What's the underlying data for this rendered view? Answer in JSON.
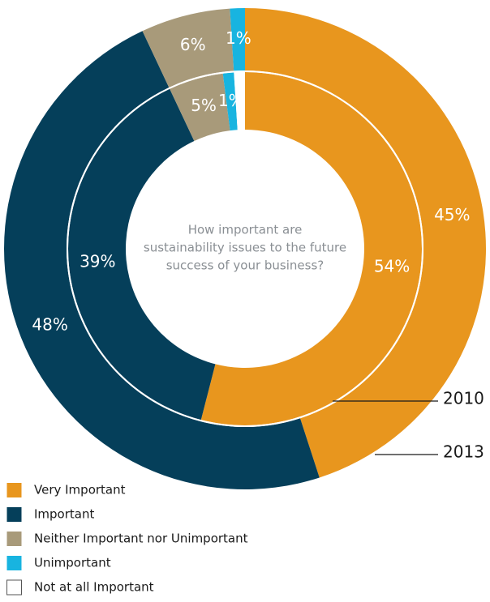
{
  "chart_data": {
    "type": "donut",
    "center_text": [
      "How important are",
      "sustainability issues to the future",
      "success of your business?"
    ],
    "categories": [
      "2010",
      "2013"
    ],
    "series": [
      {
        "name": "Very Important",
        "color": "#e8961e",
        "values": [
          54,
          45
        ],
        "value_labels": [
          "54%",
          "45%"
        ]
      },
      {
        "name": "Important",
        "color": "#053f5a",
        "values": [
          39,
          48
        ],
        "value_labels": [
          "39%",
          "48%"
        ]
      },
      {
        "name": "Neither Important nor Unimportant",
        "color": "#a89a7a",
        "values": [
          5,
          6
        ],
        "value_labels": [
          "5%",
          "6%"
        ]
      },
      {
        "name": "Unimportant",
        "color": "#18b4e0",
        "values": [
          1,
          1
        ],
        "value_labels": [
          "1%",
          "1%"
        ]
      },
      {
        "name": "Not at all Important",
        "color": "#ffffff",
        "values": [
          1,
          0
        ]
      }
    ],
    "legend": "bottom-left"
  }
}
